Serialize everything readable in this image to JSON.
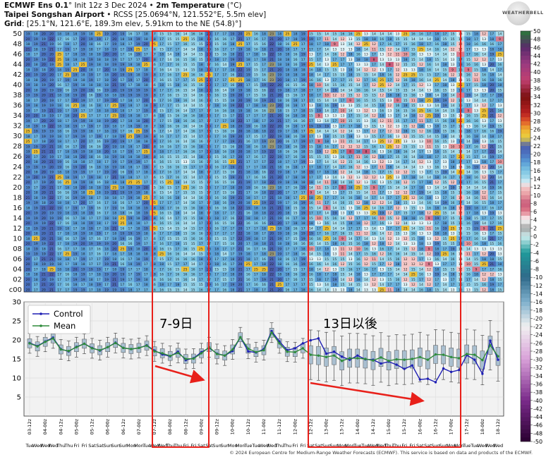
{
  "header": {
    "line1_model": "ECMWF Ens 0.1",
    "line1_init": "° Init 12z 3 Dec 2024 •",
    "line1_var": "2m Temperature",
    "line1_unit": "(°C)",
    "line2_loc": "Taipei Songshan Airport",
    "line2_rest": "• RCSS [25.0694°N, 121.552°E, 5.5m elev]",
    "line3_label": "Grid",
    "line3_rest": ": [25.1°N, 121.6°E, 189.3m elev, 5.91km to the NE (54.8)°]"
  },
  "logo_text": "WEATHERBELL",
  "footer": "© 2024 European Centre for Medium-Range Weather Forecasts (ECMWF). This service is based on data and products of the ECMWF.",
  "annotations": {
    "box1_label": "7-9日",
    "box2_label": "13日以後"
  },
  "colors": {
    "annotation_red": "#e8201a",
    "control_blue": "#1f1fb4",
    "mean_green": "#2e8b3a",
    "box_fill": "#a9bfd0"
  },
  "chart_data": [
    {
      "type": "heatmap",
      "title": "Ensemble member 2m temperature grid",
      "y_ticks": [
        "c00",
        "02",
        "04",
        "06",
        "08",
        "10",
        "12",
        "14",
        "16",
        "18",
        "20",
        "22",
        "24",
        "26",
        "28",
        "30",
        "32",
        "34",
        "36",
        "38",
        "40",
        "42",
        "44",
        "46",
        "48",
        "50"
      ],
      "member_count": 51,
      "colorbar_ticks": [
        "50",
        "48",
        "46",
        "44",
        "42",
        "40",
        "38",
        "36",
        "34",
        "32",
        "30",
        "28",
        "26",
        "24",
        "22",
        "20",
        "18",
        "16",
        "14",
        "12",
        "10",
        "8",
        "6",
        "4",
        "2",
        "0",
        "-2",
        "-4",
        "-6",
        "-8",
        "-10",
        "-12",
        "-14",
        "-16",
        "-18",
        "-20",
        "-22",
        "-24",
        "-26",
        "-28",
        "-30",
        "-32",
        "-34",
        "-36",
        "-38",
        "-40",
        "-42",
        "-44",
        "-46",
        "-48",
        "-50"
      ],
      "colorbar_range": [
        -50,
        50
      ],
      "value_range_shown": [
        6,
        25
      ]
    },
    {
      "type": "line",
      "legend": [
        "Control",
        "Mean"
      ],
      "legend_position": "top-left",
      "ylim": [
        0,
        30
      ],
      "yticks": [
        5,
        10,
        15,
        20,
        25,
        30
      ],
      "grid": true,
      "x_ticks": [
        "03-12z",
        "04-00z",
        "04-12z",
        "05-00z",
        "05-12z",
        "06-00z",
        "06-12z",
        "07-00z",
        "07-12z",
        "08-00z",
        "08-12z",
        "09-00z",
        "09-12z",
        "10-00z",
        "10-12z",
        "11-00z",
        "11-12z",
        "12-00z",
        "12-12z",
        "13-00z",
        "13-12z",
        "14-00z",
        "14-12z",
        "15-00z",
        "15-12z",
        "16-00z",
        "16-12z",
        "17-00z",
        "17-12z",
        "18-00z",
        "18-12z"
      ],
      "day_labels": [
        "Tue",
        "Wed",
        "Wed",
        "Wed",
        "Thu",
        "Thu",
        "Fri",
        "Fri",
        "Sat",
        "Sat",
        "Sun",
        "Sun",
        "Sun",
        "Mon",
        "Mon",
        "Tue",
        "Wed",
        "Wed",
        "Thu",
        "Thu",
        "Fri",
        "Fri",
        "Sat",
        "Sat",
        "Sun",
        "Sun",
        "Mon",
        "Mon",
        "Tue",
        "Tue",
        "Wed",
        "Wed",
        "Thu",
        "Thu",
        "Fri",
        "Fri",
        "Sat",
        "Sat",
        "Sun",
        "Sun",
        "Mon",
        "Mon",
        "Tue",
        "Tue",
        "Wed",
        "Wed",
        "Thu",
        "Thu",
        "Fri",
        "Fri",
        "Sat",
        "Sat",
        "Sun",
        "Sun",
        "Mon",
        "Mon",
        "Tue",
        "Tue",
        "Wed",
        "Wed",
        "Wed"
      ],
      "series": [
        {
          "name": "Control",
          "values": [
            19.2,
            18.4,
            19.6,
            20.6,
            17.6,
            17.0,
            18.2,
            19.0,
            17.9,
            17.2,
            18.1,
            19.3,
            17.9,
            17.6,
            17.9,
            18.6,
            17.2,
            16.2,
            15.7,
            16.9,
            14.7,
            15.2,
            16.8,
            17.9,
            16.4,
            15.9,
            17.1,
            20.7,
            17.0,
            16.7,
            17.6,
            22.3,
            19.6,
            17.3,
            17.8,
            19.1,
            19.9,
            20.4,
            16.4,
            16.9,
            15.6,
            14.8,
            15.9,
            14.9,
            14.8,
            13.8,
            14.3,
            13.5,
            12.4,
            13.3,
            9.6,
            9.8,
            8.9,
            12.5,
            11.6,
            12.1,
            16.0,
            14.8,
            11.1,
            19.8,
            14.8
          ]
        },
        {
          "name": "Mean",
          "values": [
            19.1,
            18.3,
            19.5,
            20.4,
            17.5,
            17.1,
            18.1,
            19.0,
            17.8,
            17.3,
            18.1,
            19.2,
            17.9,
            17.6,
            17.9,
            18.5,
            17.0,
            16.5,
            15.8,
            16.6,
            15.0,
            15.1,
            16.5,
            18.1,
            16.3,
            15.9,
            17.5,
            20.7,
            17.7,
            16.8,
            17.3,
            21.9,
            19.1,
            16.9,
            16.8,
            17.8,
            16.1,
            15.9,
            15.5,
            15.9,
            14.5,
            15.2,
            15.2,
            15.0,
            14.6,
            15.4,
            14.5,
            14.9,
            14.8,
            15.0,
            15.5,
            14.8,
            16.2,
            16.1,
            15.5,
            15.2,
            16.3,
            16.1,
            14.7,
            18.6,
            15.7
          ]
        }
      ],
      "annotation_arrows": [
        "downward trend 7-9日",
        "downward trend 13日以後"
      ]
    }
  ]
}
